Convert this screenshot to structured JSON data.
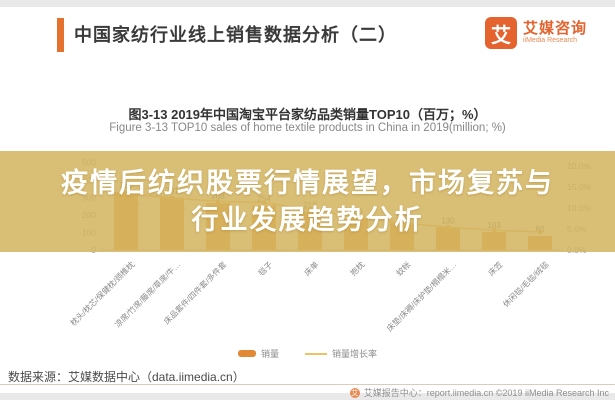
{
  "colors": {
    "accent_orange": "#e4712e",
    "logo_orange": "#e4632e",
    "bar_fill": "#e89a3e",
    "line_color": "#efc364",
    "marker_color": "#e8ac4e",
    "value_label": "#666666",
    "pct_label": "#e8963f",
    "axis_text": "#999999",
    "axis_line": "#cccccc",
    "watermark_bg": "rgba(211,179,96,0.86)",
    "watermark_text": "#ffffff"
  },
  "header": {
    "title": "中国家纺行业线上销售数据分析（二）",
    "logo_glyph": "艾",
    "brand_cn": "艾媒咨询",
    "brand_en": "iiMedia Research"
  },
  "watermark": {
    "line1": "疫情后纺织股票行情展望，市场复苏与",
    "line2": "行业发展趋势分析"
  },
  "chart_data": {
    "type": "bar",
    "combo": "bar+line",
    "title": "图3-13 2019年中国淘宝平台家纺品类销量TOP10（百万；%）",
    "subtitle": "Figure 3-13 TOP10 sales of home textile products in China in 2019(million; %)",
    "categories": [
      "枕头/枕芯/保健枕/颈椎枕",
      "凉席/竹席/藤席/草席/牛…",
      "床品套件/四件套/多件套",
      "毯子",
      "床单",
      "抱枕",
      "蚊帐",
      "床垫/床褥/床护垫/榻榻米…",
      "床笠",
      "休闲毯/毛毯/绒毯"
    ],
    "series": [
      {
        "name": "销量",
        "kind": "bar",
        "values": [
          332,
          301,
          268,
          254,
          219,
          180,
          155,
          130,
          103,
          80
        ]
      },
      {
        "name": "销量增长率",
        "kind": "line",
        "values": [
          13.5,
          12.4,
          11.6,
          11.3,
          9.6,
          7.8,
          6.5,
          5.4,
          4.7,
          4.3
        ]
      }
    ],
    "left_axis": {
      "max": 600,
      "tick_values": [
        0,
        100,
        200,
        300,
        400,
        500
      ],
      "tick_labels": [
        "0",
        "100",
        "200",
        "300",
        "400",
        "500"
      ]
    },
    "right_axis": {
      "max": 25,
      "tick_values": [
        0,
        5,
        10,
        15,
        20
      ],
      "tick_labels": [
        "0.0%",
        "5.0%",
        "10.0%",
        "15.0%",
        "20.0%"
      ]
    },
    "grid": false,
    "legend_position": "bottom"
  },
  "legend": {
    "bar_label": "销量",
    "line_label": "销量增长率"
  },
  "footer": {
    "source": "数据来源：艾媒数据中心（data.iimedia.cn）",
    "report": "艾媒报告中心：report.iimedia.cn  ©2019  iiMedia Research Inc",
    "badge_glyph": "艾"
  }
}
